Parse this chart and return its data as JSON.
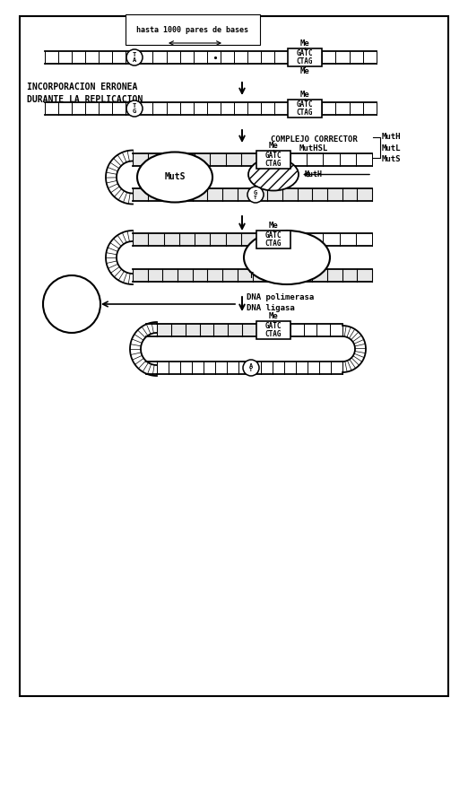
{
  "bg_color": "#ffffff",
  "border_color": "#000000",
  "label_hasta": "hasta 1000 pares de bases",
  "label_incorp": "INCORPORACION ERRONEA\nDURANTE LA REPLICACION",
  "label_complejo": "COMPLEJO CORRECTOR\nMutHSL",
  "label_components": "MutH\nMutL\nMutS",
  "label_dna_pol": "DNA polimerasa\nDNA ligasa",
  "label_me": "Me"
}
